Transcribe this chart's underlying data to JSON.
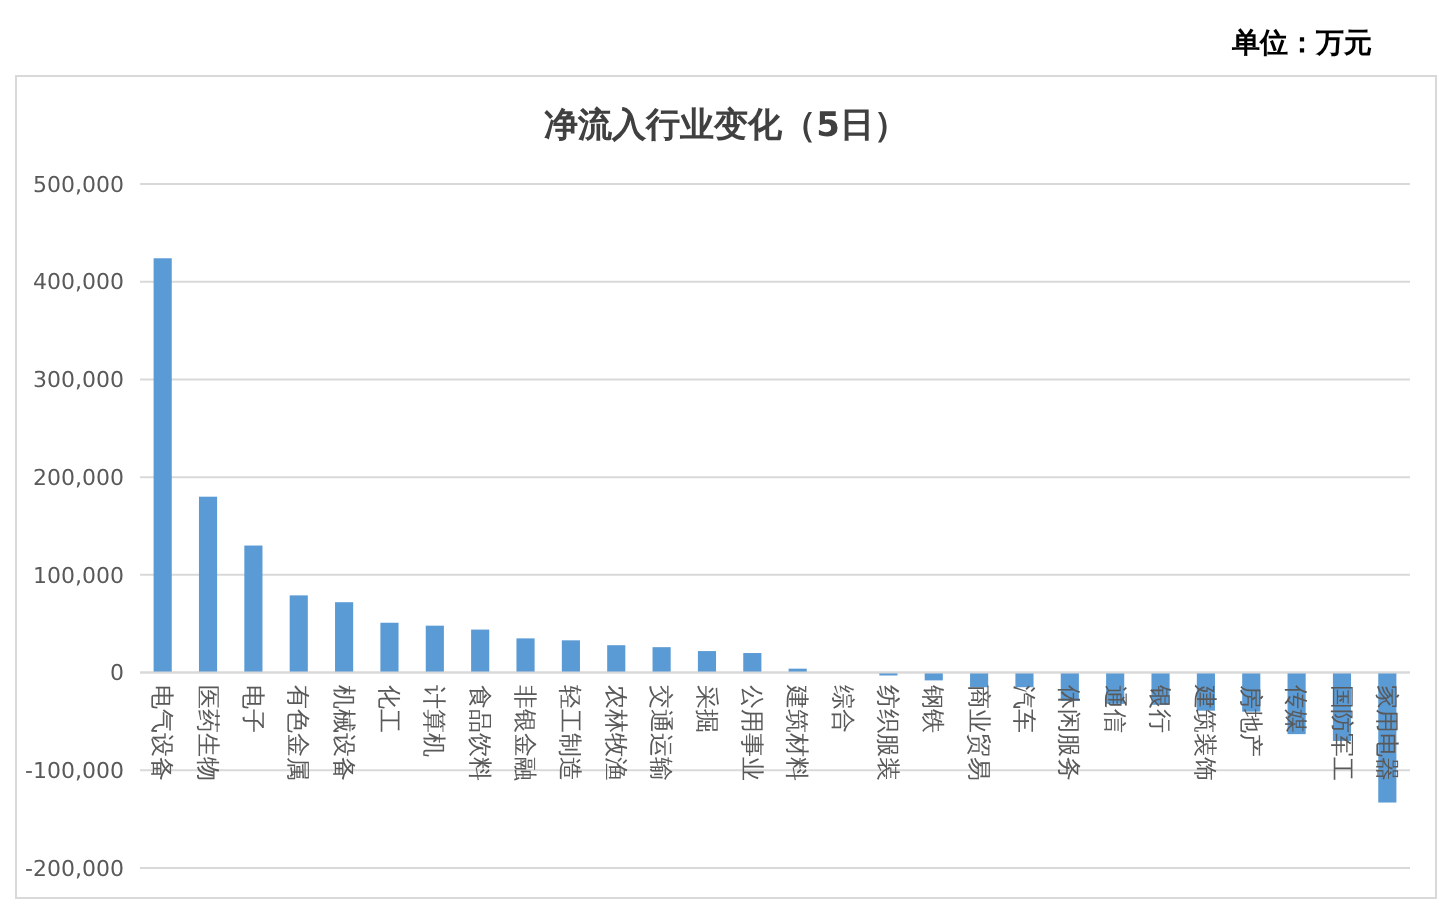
{
  "chart_data": {
    "type": "bar",
    "title": "净流入行业变化（5日）",
    "annotations": [
      "单位：万元"
    ],
    "categories": [
      "电气设备",
      "医药生物",
      "电子",
      "有色金属",
      "机械设备",
      "化工",
      "计算机",
      "食品饮料",
      "非银金融",
      "轻工制造",
      "农林牧渔",
      "交通运输",
      "采掘",
      "公用事业",
      "建筑材料",
      "综合",
      "纺织服装",
      "钢铁",
      "商业贸易",
      "汽车",
      "休闲服务",
      "通信",
      "银行",
      "建筑装饰",
      "房地产",
      "传媒",
      "国防军工",
      "家用电器"
    ],
    "values": [
      424000,
      180000,
      130000,
      79000,
      72000,
      51000,
      48000,
      44000,
      35000,
      33000,
      28000,
      26000,
      22000,
      20000,
      4000,
      0,
      -3000,
      -8000,
      -15000,
      -15000,
      -29000,
      -32000,
      -33000,
      -39000,
      -40000,
      -63000,
      -70000,
      -133000
    ],
    "color": "#5b9bd5",
    "ylim": [
      -200000,
      500000
    ],
    "yticks": [
      {
        "value": -200000,
        "label": "-200,000"
      },
      {
        "value": -100000,
        "label": "-100,000"
      },
      {
        "value": 0,
        "label": "0"
      },
      {
        "value": 100000,
        "label": "100,000"
      },
      {
        "value": 200000,
        "label": "200,000"
      },
      {
        "value": 300000,
        "label": "300,000"
      },
      {
        "value": 400000,
        "label": "400,000"
      },
      {
        "value": 500000,
        "label": "500,000"
      }
    ],
    "grid": "y"
  }
}
